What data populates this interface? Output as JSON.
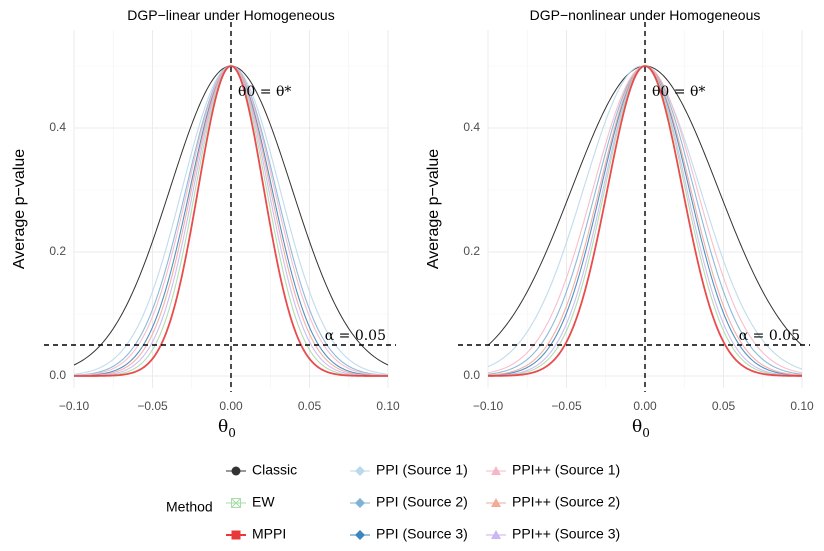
{
  "legend_title": "Method",
  "legend_items": [
    {
      "label": "Classic",
      "color": "#333333",
      "icon": "circle-icon"
    },
    {
      "label": "PPI (Source 1)",
      "color": "#b9d8ea",
      "icon": "diamond-icon"
    },
    {
      "label": "PPI++ (Source 1)",
      "color": "#f6b8c6",
      "icon": "triangle-icon"
    },
    {
      "label": "EW",
      "color": "#a8dca8",
      "icon": "square-cross-icon"
    },
    {
      "label": "PPI (Source 2)",
      "color": "#7fb2d6",
      "icon": "diamond-icon"
    },
    {
      "label": "PPI++ (Source 2)",
      "color": "#f5a99a",
      "icon": "triangle-icon"
    },
    {
      "label": "MPPI",
      "color": "#e8383a",
      "icon": "square-icon"
    },
    {
      "label": "PPI (Source 3)",
      "color": "#3d86bd",
      "icon": "diamond-icon"
    },
    {
      "label": "PPI++ (Source 3)",
      "color": "#c9b6f2",
      "icon": "triangle-icon"
    }
  ],
  "chart_data": [
    {
      "type": "line",
      "title": "DGP−linear under Homogeneous",
      "xlabel": "θ0",
      "ylabel": "Average p−value",
      "xlim": [
        -0.1,
        0.1
      ],
      "ylim": [
        0,
        0.5
      ],
      "x_ticks": [
        -0.1,
        -0.05,
        0.0,
        0.05,
        0.1
      ],
      "x_tick_labels": [
        "−0.10",
        "−0.05",
        "0.00",
        "0.05",
        "0.10"
      ],
      "y_ticks": [
        0.0,
        0.2,
        0.4
      ],
      "y_tick_labels": [
        "0.0",
        "0.2",
        "0.4"
      ],
      "vline": {
        "x": 0.0,
        "label": "θ0 = θ*"
      },
      "hline": {
        "y": 0.05,
        "label": "α = 0.05"
      },
      "curve_model": "gaussian: y = peak * exp(-(x-center)^2 / (2*sd^2))",
      "series": [
        {
          "name": "Classic",
          "peak": 0.5,
          "center": 0.0,
          "sd": 0.0387
        },
        {
          "name": "PPI (Source 1)",
          "peak": 0.5,
          "center": 0.0,
          "sd": 0.031
        },
        {
          "name": "PPI (Source 2)",
          "peak": 0.5,
          "center": 0.0,
          "sd": 0.0285
        },
        {
          "name": "PPI (Source 3)",
          "peak": 0.5,
          "center": 0.0,
          "sd": 0.026
        },
        {
          "name": "PPI++ (Source 1)",
          "peak": 0.5,
          "center": 0.0,
          "sd": 0.0275
        },
        {
          "name": "PPI++ (Source 2)",
          "peak": 0.5,
          "center": 0.0,
          "sd": 0.025
        },
        {
          "name": "PPI++ (Source 3)",
          "peak": 0.5,
          "center": 0.0,
          "sd": 0.0238
        },
        {
          "name": "EW",
          "peak": 0.5,
          "center": 0.0,
          "sd": 0.0225
        },
        {
          "name": "MPPI",
          "peak": 0.5,
          "center": 0.0,
          "sd": 0.0208
        }
      ]
    },
    {
      "type": "line",
      "title": "DGP−nonlinear under Homogeneous",
      "xlabel": "θ0",
      "ylabel": "Average p−value",
      "xlim": [
        -0.1,
        0.1
      ],
      "ylim": [
        0,
        0.5
      ],
      "x_ticks": [
        -0.1,
        -0.05,
        0.0,
        0.05,
        0.1
      ],
      "x_tick_labels": [
        "−0.10",
        "−0.05",
        "0.00",
        "0.05",
        "0.10"
      ],
      "y_ticks": [
        0.0,
        0.2,
        0.4
      ],
      "y_tick_labels": [
        "0.0",
        "0.2",
        "0.4"
      ],
      "vline": {
        "x": 0.0,
        "label": "θ0 = θ*"
      },
      "hline": {
        "y": 0.05,
        "label": "α = 0.05"
      },
      "curve_model": "gaussian: y = peak * exp(-(x-center)^2 / (2*sd^2))",
      "series": [
        {
          "name": "Classic",
          "peak": 0.5,
          "center": 0.0,
          "sd": 0.0465
        },
        {
          "name": "PPI (Source 1)",
          "peak": 0.5,
          "center": -0.002,
          "sd": 0.037
        },
        {
          "name": "PPI (Source 2)",
          "peak": 0.5,
          "center": 0.0,
          "sd": 0.031
        },
        {
          "name": "PPI (Source 3)",
          "peak": 0.5,
          "center": 0.0,
          "sd": 0.028
        },
        {
          "name": "PPI++ (Source 1)",
          "peak": 0.5,
          "center": 0.0,
          "sd": 0.033
        },
        {
          "name": "PPI++ (Source 2)",
          "peak": 0.5,
          "center": 0.0,
          "sd": 0.029
        },
        {
          "name": "PPI++ (Source 3)",
          "peak": 0.5,
          "center": 0.0,
          "sd": 0.0265
        },
        {
          "name": "EW",
          "peak": 0.5,
          "center": 0.0,
          "sd": 0.0255
        },
        {
          "name": "MPPI",
          "peak": 0.5,
          "center": 0.0,
          "sd": 0.0238
        }
      ]
    }
  ]
}
